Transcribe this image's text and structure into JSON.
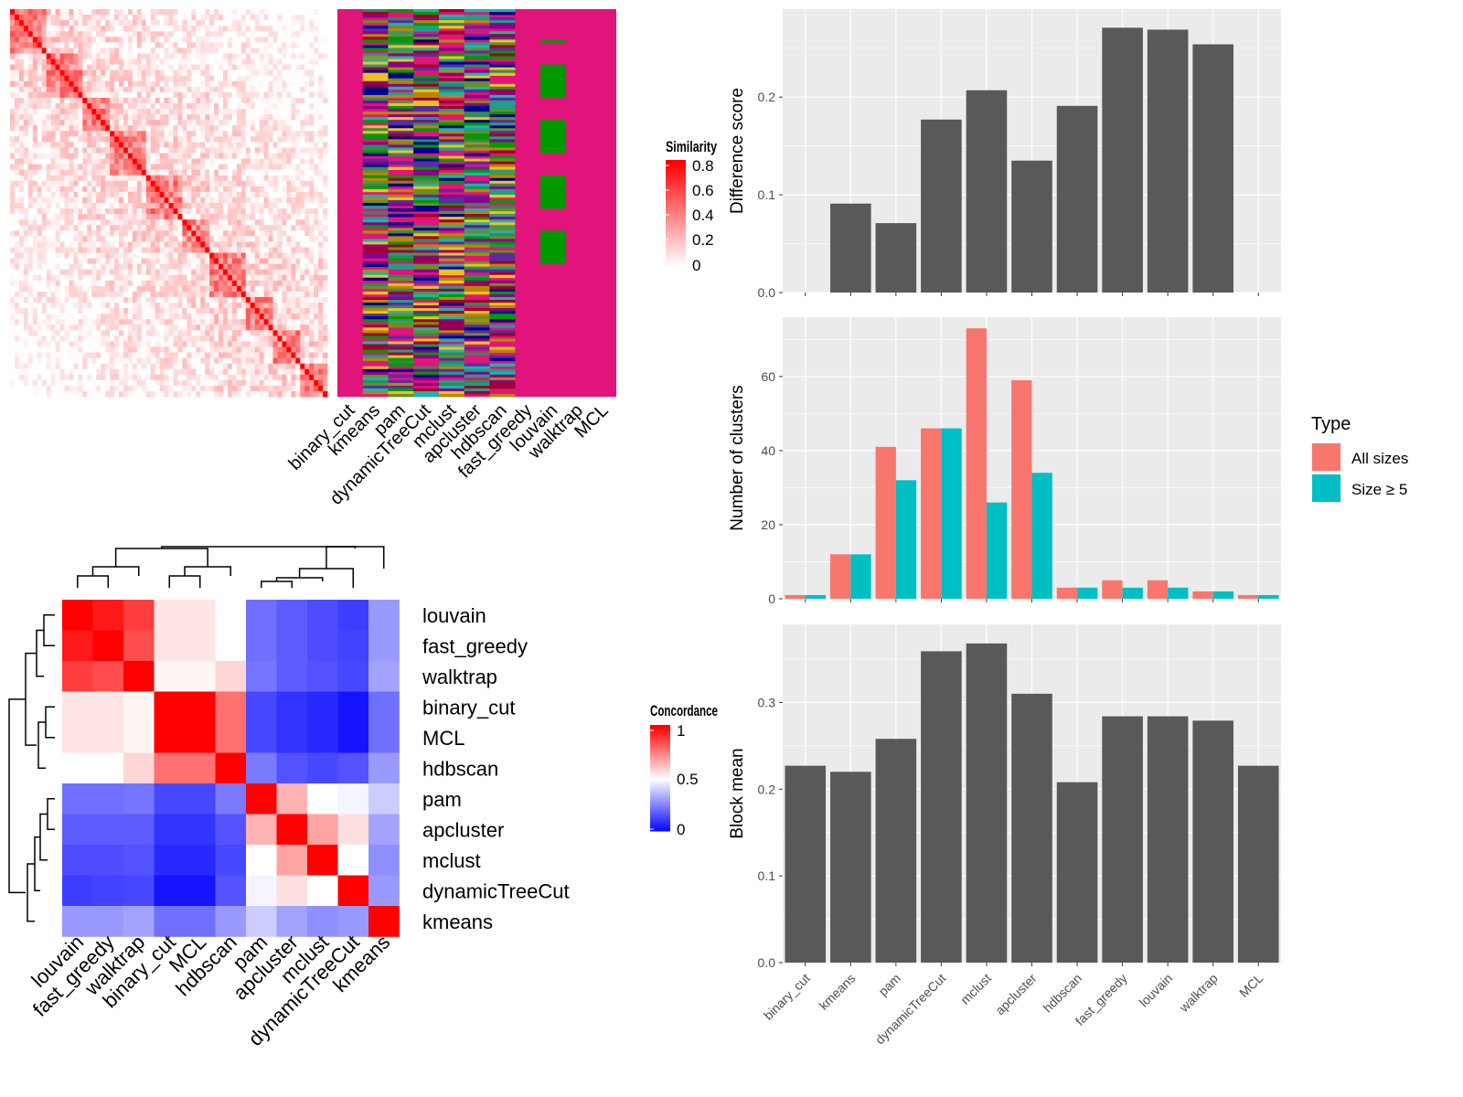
{
  "colors": {
    "sim_high": "#ff0000",
    "sim_low": "#ffffff",
    "conc_high": "#ff0000",
    "conc_mid": "#ffffff",
    "conc_low": "#0000ff",
    "member_bg": "#e0147a",
    "bar_gray": "#595959",
    "panel_bg": "#ebebeb",
    "all_sizes": "#f8766d",
    "size_ge5": "#00bfc4"
  },
  "chart_data": [
    {
      "id": "similarity-heatmap",
      "type": "heatmap",
      "description_of_pattern": "Large symmetric similarity matrix with a strong red diagonal; column-annotation of cluster membership per method",
      "legend": {
        "title": "Similarity",
        "ticks": [
          "0.8",
          "0.6",
          "0.4",
          "0.2",
          "0"
        ],
        "range": [
          0,
          0.85
        ]
      },
      "membership_columns": [
        "binary_cut",
        "kmeans",
        "pam",
        "dynamicTreeCut",
        "mclust",
        "apcluster",
        "hdbscan",
        "fast_greedy",
        "louvain",
        "walktrap",
        "MCL"
      ]
    },
    {
      "id": "concordance-heatmap",
      "type": "heatmap",
      "legend": {
        "title": "Concordance",
        "ticks": [
          "1",
          "0.5",
          "0"
        ],
        "range": [
          0,
          1
        ]
      },
      "rows": [
        "louvain",
        "fast_greedy",
        "walktrap",
        "binary_cut",
        "MCL",
        "hdbscan",
        "pam",
        "apcluster",
        "mclust",
        "dynamicTreeCut",
        "kmeans"
      ],
      "cols": [
        "louvain",
        "fast_greedy",
        "walktrap",
        "binary_cut",
        "MCL",
        "hdbscan",
        "pam",
        "apcluster",
        "mclust",
        "dynamicTreeCut",
        "kmeans"
      ],
      "values": [
        [
          1.0,
          0.95,
          0.88,
          0.55,
          0.55,
          0.5,
          0.22,
          0.18,
          0.15,
          0.12,
          0.3
        ],
        [
          0.95,
          1.0,
          0.85,
          0.55,
          0.55,
          0.5,
          0.22,
          0.18,
          0.15,
          0.13,
          0.3
        ],
        [
          0.88,
          0.85,
          1.0,
          0.52,
          0.52,
          0.58,
          0.23,
          0.18,
          0.16,
          0.14,
          0.32
        ],
        [
          0.55,
          0.55,
          0.52,
          1.0,
          1.0,
          0.78,
          0.14,
          0.1,
          0.08,
          0.04,
          0.22
        ],
        [
          0.55,
          0.55,
          0.52,
          1.0,
          1.0,
          0.78,
          0.14,
          0.1,
          0.08,
          0.04,
          0.22
        ],
        [
          0.5,
          0.5,
          0.58,
          0.78,
          0.78,
          1.0,
          0.24,
          0.16,
          0.14,
          0.16,
          0.3
        ],
        [
          0.22,
          0.22,
          0.23,
          0.14,
          0.14,
          0.24,
          1.0,
          0.65,
          0.5,
          0.48,
          0.4
        ],
        [
          0.18,
          0.18,
          0.18,
          0.1,
          0.1,
          0.16,
          0.65,
          1.0,
          0.68,
          0.56,
          0.32
        ],
        [
          0.15,
          0.15,
          0.16,
          0.08,
          0.08,
          0.14,
          0.5,
          0.68,
          1.0,
          0.5,
          0.28
        ],
        [
          0.12,
          0.13,
          0.14,
          0.04,
          0.04,
          0.16,
          0.48,
          0.56,
          0.5,
          1.0,
          0.3
        ],
        [
          0.3,
          0.3,
          0.32,
          0.22,
          0.22,
          0.3,
          0.4,
          0.32,
          0.28,
          0.3,
          1.0
        ]
      ]
    },
    {
      "id": "difference-score",
      "type": "bar",
      "ylabel": "Difference score",
      "categories": [
        "binary_cut",
        "kmeans",
        "pam",
        "dynamicTreeCut",
        "mclust",
        "apcluster",
        "hdbscan",
        "fast_greedy",
        "louvain",
        "walktrap",
        "MCL"
      ],
      "values": [
        0.0,
        0.091,
        0.071,
        0.177,
        0.207,
        0.135,
        0.191,
        0.271,
        0.269,
        0.254,
        0.0
      ],
      "ylim": [
        0,
        0.29
      ],
      "yticks": [
        "0.0",
        "0.1",
        "0.2"
      ]
    },
    {
      "id": "number-of-clusters",
      "type": "bar",
      "ylabel": "Number of clusters",
      "categories": [
        "binary_cut",
        "kmeans",
        "pam",
        "dynamicTreeCut",
        "mclust",
        "apcluster",
        "hdbscan",
        "fast_greedy",
        "louvain",
        "walktrap",
        "MCL"
      ],
      "series": [
        {
          "name": "All sizes",
          "values": [
            1,
            12,
            41,
            46,
            73,
            59,
            3,
            5,
            5,
            2,
            1
          ]
        },
        {
          "name": "Size ≥ 5",
          "values": [
            1,
            12,
            32,
            46,
            26,
            34,
            3,
            3,
            3,
            2,
            1
          ]
        }
      ],
      "ylim": [
        0,
        76
      ],
      "yticks": [
        "0",
        "20",
        "40",
        "60"
      ],
      "legend_title": "Type"
    },
    {
      "id": "block-mean",
      "type": "bar",
      "ylabel": "Block mean",
      "categories": [
        "binary_cut",
        "kmeans",
        "pam",
        "dynamicTreeCut",
        "mclust",
        "apcluster",
        "hdbscan",
        "fast_greedy",
        "louvain",
        "walktrap",
        "MCL"
      ],
      "values": [
        0.227,
        0.22,
        0.258,
        0.359,
        0.368,
        0.31,
        0.208,
        0.284,
        0.284,
        0.279,
        0.227
      ],
      "ylim": [
        0,
        0.39
      ],
      "yticks": [
        "0.0",
        "0.1",
        "0.2",
        "0.3"
      ]
    }
  ]
}
